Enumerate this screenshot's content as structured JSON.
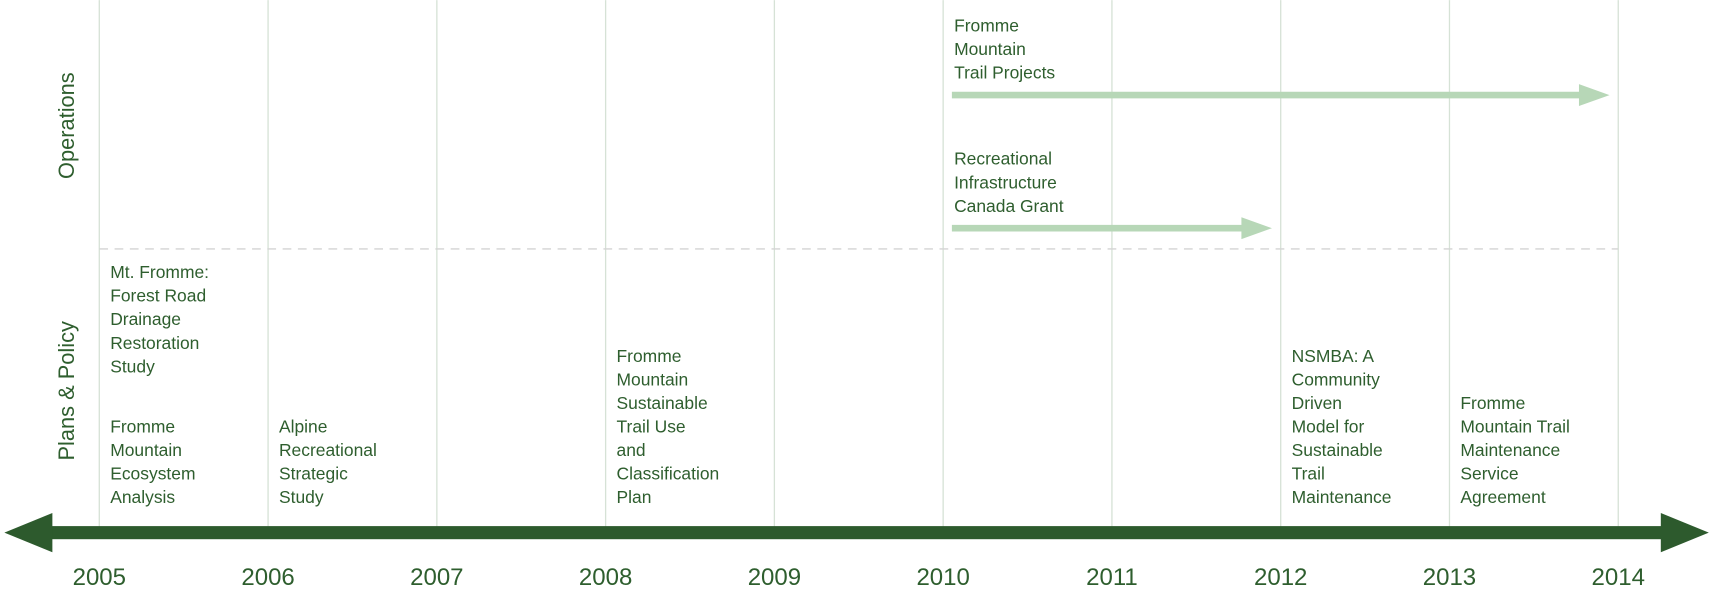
{
  "timeline": {
    "years": [
      2005,
      2006,
      2007,
      2008,
      2009,
      2010,
      2011,
      2012,
      2013,
      2014
    ],
    "sections": [
      "Operations",
      "Plans & Policy"
    ],
    "operations": [
      {
        "lines": [
          "Fromme",
          "Mountain",
          "Trail Projects"
        ],
        "start": 2010,
        "end": 2014
      },
      {
        "lines": [
          "Recreational",
          "Infrastructure",
          "Canada Grant"
        ],
        "start": 2010,
        "end": 2012
      }
    ],
    "plans": [
      {
        "year": 2005,
        "lines": [
          "Mt. Fromme:",
          "Forest Road",
          "Drainage",
          "Restoration",
          "Study"
        ]
      },
      {
        "year": 2005,
        "lines": [
          "Fromme",
          "Mountain",
          "Ecosystem",
          "Analysis"
        ]
      },
      {
        "year": 2006,
        "lines": [
          "Alpine",
          "Recreational",
          "Strategic",
          "Study"
        ]
      },
      {
        "year": 2008,
        "lines": [
          "Fromme",
          "Mountain",
          "Sustainable",
          "Trail Use",
          "and",
          "Classification",
          "Plan"
        ]
      },
      {
        "year": 2012,
        "lines": [
          "NSMBA: A",
          "Community",
          "Driven",
          "Model for",
          "Sustainable",
          "Trail",
          "Maintenance"
        ]
      },
      {
        "year": 2013,
        "lines": [
          "Fromme",
          "Mountain Trail",
          "Maintenance",
          "Service",
          "Agreement"
        ]
      }
    ]
  }
}
